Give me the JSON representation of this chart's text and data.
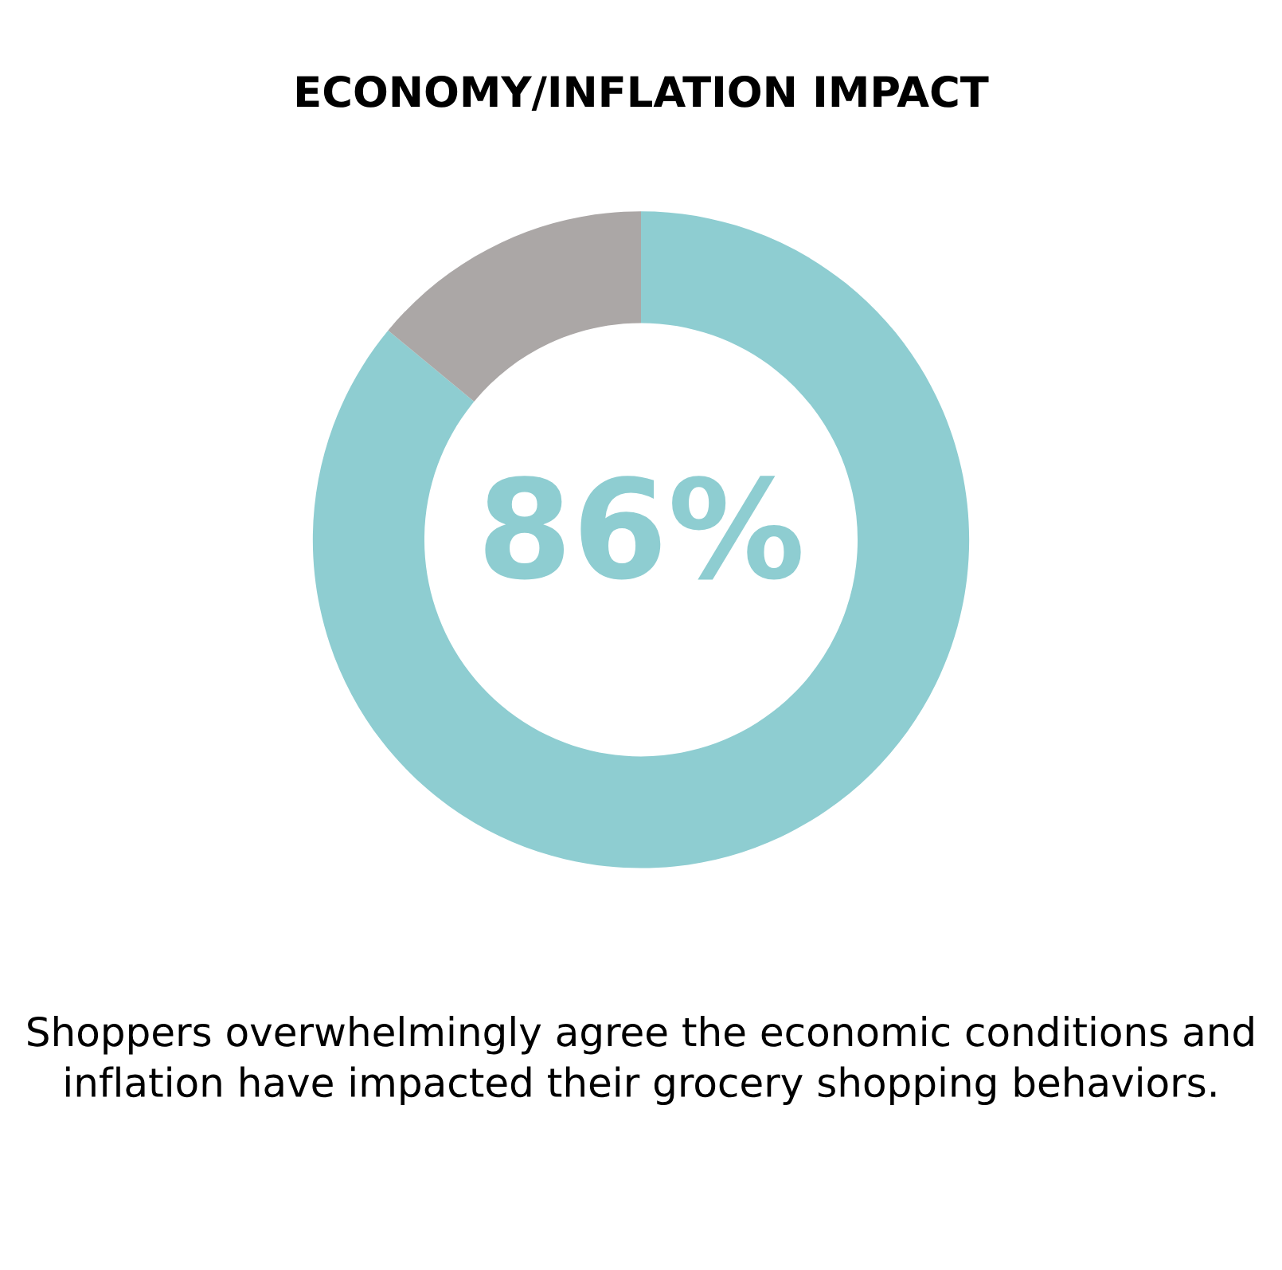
{
  "chart_data": {
    "type": "donut",
    "title": "ECONOMY/INFLATION IMPACT",
    "categories": [
      null,
      null
    ],
    "values": [
      86,
      14
    ],
    "colors": [
      "#8ecdd1",
      "#aba7a6"
    ],
    "value_labels": [
      "86%",
      null
    ],
    "annotations": [
      "Shoppers overwhelmingly agree the economic conditions and inflation have impacted their grocery shopping behaviors."
    ],
    "legend": false
  }
}
